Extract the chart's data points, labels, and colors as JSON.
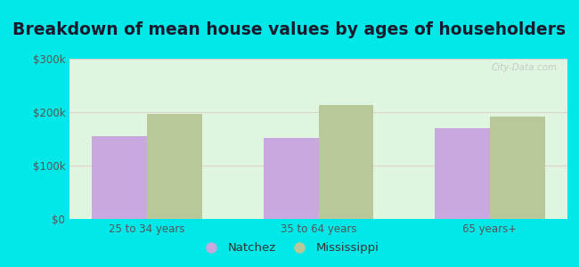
{
  "title": "Breakdown of mean house values by ages of householders",
  "categories": [
    "25 to 34 years",
    "35 to 64 years",
    "65 years+"
  ],
  "natchez_values": [
    155000,
    152000,
    170000
  ],
  "mississippi_values": [
    196000,
    213000,
    192000
  ],
  "bar_color_natchez": "#c9a8e0",
  "bar_color_mississippi": "#b8c898",
  "ylim": [
    0,
    300000
  ],
  "yticks": [
    0,
    100000,
    200000,
    300000
  ],
  "ytick_labels": [
    "$0",
    "$100k",
    "$200k",
    "$300k"
  ],
  "background_outer": "#00e8e8",
  "background_inner_top": "#e0f5e0",
  "background_inner_bottom": "#d0f0d0",
  "legend_labels": [
    "Natchez",
    "Mississippi"
  ],
  "watermark": "City-Data.com",
  "bar_width": 0.32,
  "title_fontsize": 13.5,
  "tick_fontsize": 8.5,
  "legend_fontsize": 9.5
}
